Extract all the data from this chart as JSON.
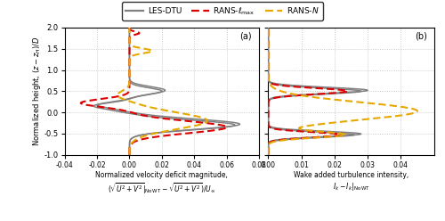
{
  "y_label": "Normalized height, $(z - z_H)/D$",
  "xlim_a": [
    -0.04,
    0.08
  ],
  "xlim_b": [
    0.0,
    0.05
  ],
  "ylim": [
    -1.0,
    2.0
  ],
  "xlabel_a": "Normalized velocity deficit magnitude,\n$(\\sqrt{U^2+V^2}|_{\\mathrm{No\\,WT}} - \\sqrt{U^2+V^2})/U_\\infty$",
  "xlabel_b": "Wake added turbulence intensity,\n$I_k - I_k|_{\\mathrm{No\\,WT}}$",
  "panel_a_label": "(a)",
  "panel_b_label": "(b)",
  "gray": "#808080",
  "red": "#dd0000",
  "orange": "#e6a800",
  "xticks_a": [
    -0.04,
    -0.02,
    0.0,
    0.02,
    0.04,
    0.06,
    0.08
  ],
  "xticks_b": [
    0.0,
    0.01,
    0.02,
    0.03,
    0.04
  ],
  "yticks": [
    -1.0,
    -0.5,
    0.0,
    0.5,
    1.0,
    1.5,
    2.0
  ],
  "xticklabels_a": [
    "-0.04",
    "-0.02",
    "0.00",
    "0.02",
    "0.04",
    "0.06",
    "0.08"
  ],
  "xticklabels_b": [
    "0.00",
    "0.01",
    "0.02",
    "0.03",
    "0.04"
  ],
  "ytick_labels": [
    "-1.0",
    "-0.5",
    "0.0",
    "0.5",
    "1.0",
    "1.5",
    "2.0"
  ]
}
